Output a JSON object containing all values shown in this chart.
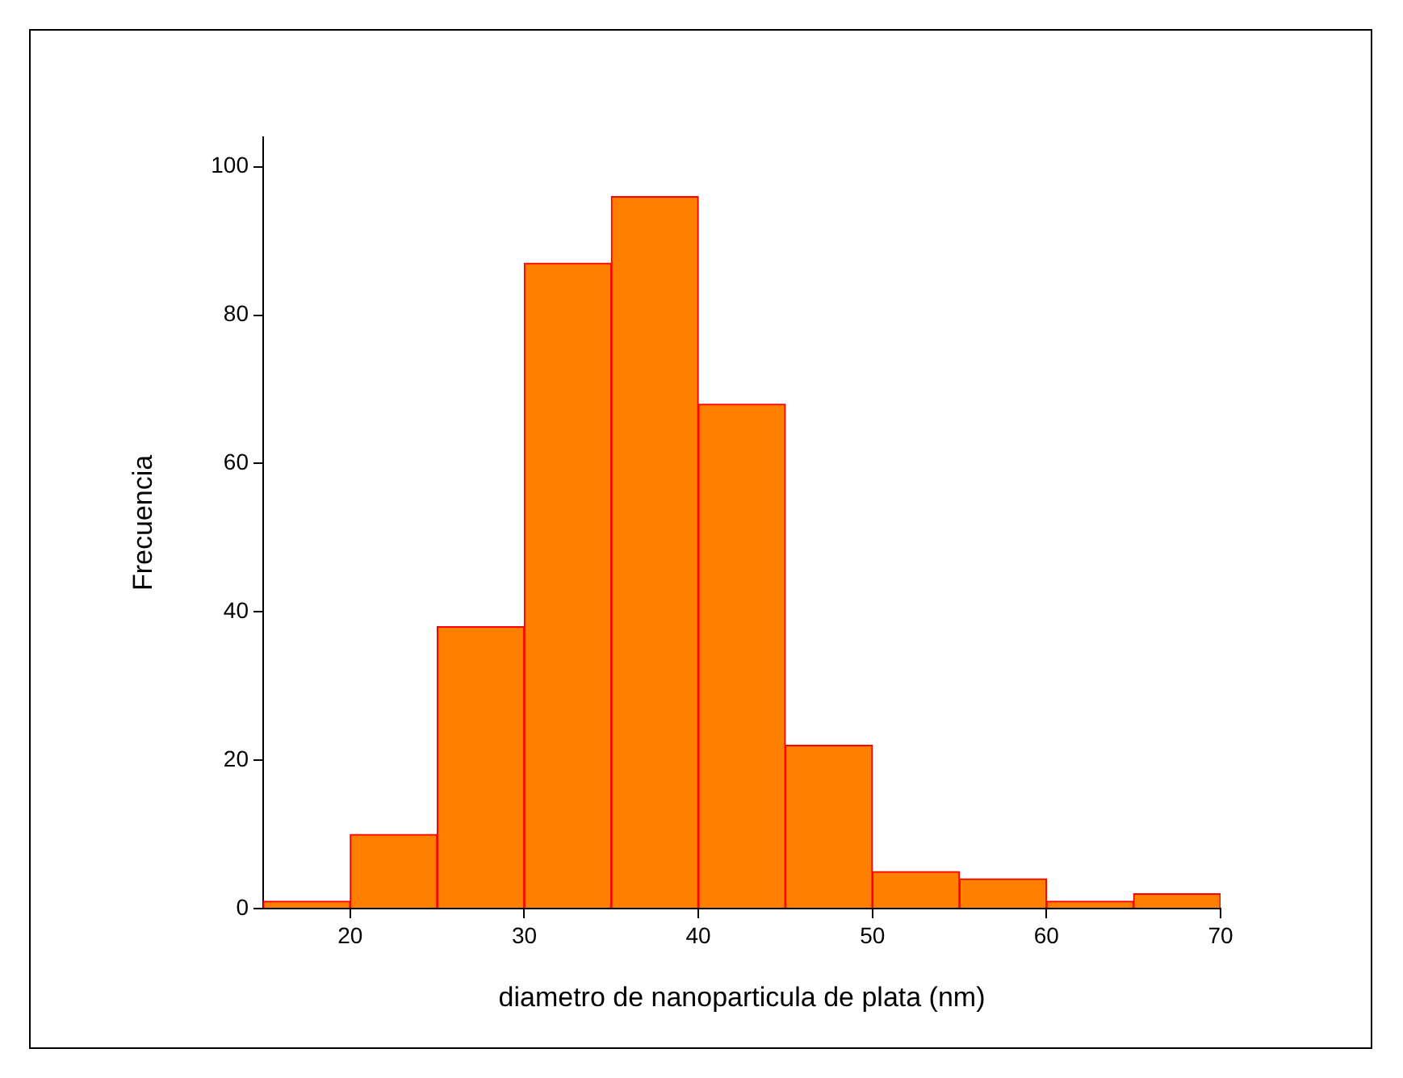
{
  "chart_data": {
    "type": "histogram",
    "xlabel": "diametro de nanoparticula de plata (nm)",
    "ylabel": "Frecuencia",
    "bins": [
      15,
      20,
      25,
      30,
      35,
      40,
      45,
      50,
      55,
      60,
      65,
      70
    ],
    "values": [
      1,
      10,
      38,
      87,
      96,
      68,
      22,
      5,
      4,
      1,
      2
    ],
    "color": "#ff8000",
    "xlim": [
      15,
      70
    ],
    "xticks": [
      20,
      30,
      40,
      50,
      60,
      70
    ],
    "ylim": [
      0,
      104
    ],
    "yticks": [
      0,
      20,
      40,
      60,
      80,
      100
    ],
    "grid": false,
    "legend": false
  }
}
